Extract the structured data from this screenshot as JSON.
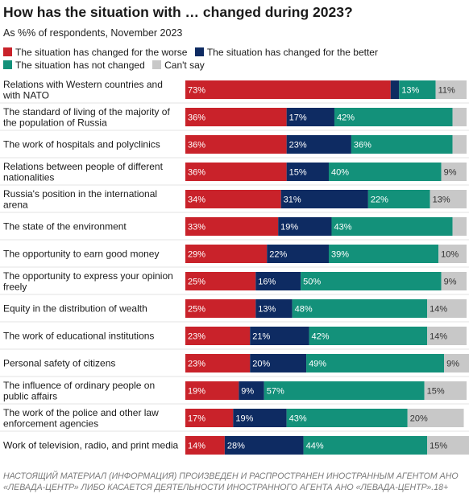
{
  "title": "How has the situation with … changed during 2023?",
  "subtitle": "As %% of respondents, November 2023",
  "legend": {
    "items": [
      {
        "label": "The situation has changed for the worse",
        "color": "#c9222a"
      },
      {
        "label": "The situation has changed for the better",
        "color": "#0e2b62"
      },
      {
        "label": "The situation has not changed",
        "color": "#13917a"
      },
      {
        "label": "Can't say",
        "color": "#c8c8c8"
      }
    ]
  },
  "footer": "НАСТОЯЩИЙ МАТЕРИАЛ (ИНФОРМАЦИЯ) ПРОИЗВЕДЕН И РАСПРОСТРАНЕН ИНОСТРАННЫМ АГЕНТОМ АНО «ЛЕВАДА-ЦЕНТР» ЛИБО КАСАЕТСЯ ДЕЯТЕЛЬНОСТИ ИНОСТРАННОГО АГЕНТА АНО «ЛЕВАДА-ЦЕНТР».18+",
  "chart_data": {
    "type": "bar",
    "orientation": "horizontal",
    "stacked": true,
    "xlim": [
      0,
      100
    ],
    "categories": [
      "Relations with Western countries and with NATO",
      "The standard of living of the majority of the population of Russia",
      "The work of hospitals and polyclinics",
      "Relations between people of different nationalities",
      "Russia's position in the international arena",
      "The state of the environment",
      "The opportunity to earn good money",
      "The opportunity to express your opinion freely",
      "Equity in the distribution of wealth",
      "The work of educational institutions",
      "Personal safety of citizens",
      "The influence of ordinary people on public affairs",
      "The work of the police and other law enforcement agencies",
      "Work of television, radio, and print media"
    ],
    "series": [
      {
        "name": "The situation has changed for the worse",
        "color": "#c9222a",
        "label_color": "#ffffff",
        "values": [
          73,
          36,
          36,
          36,
          34,
          33,
          29,
          25,
          25,
          23,
          23,
          19,
          17,
          14
        ],
        "labels": [
          "73%",
          "36%",
          "36%",
          "36%",
          "34%",
          "33%",
          "29%",
          "25%",
          "25%",
          "23%",
          "23%",
          "19%",
          "17%",
          "14%"
        ]
      },
      {
        "name": "The situation has changed for the better",
        "color": "#0e2b62",
        "label_color": "#ffffff",
        "values": [
          3,
          17,
          23,
          15,
          31,
          19,
          22,
          16,
          13,
          21,
          20,
          9,
          19,
          28
        ],
        "labels": [
          "",
          "17%",
          "23%",
          "15%",
          "31%",
          "19%",
          "22%",
          "16%",
          "13%",
          "21%",
          "20%",
          "9%",
          "19%",
          "28%"
        ]
      },
      {
        "name": "The situation has not changed",
        "color": "#13917a",
        "label_color": "#ffffff",
        "values": [
          13,
          42,
          36,
          40,
          22,
          43,
          39,
          50,
          48,
          42,
          49,
          57,
          43,
          44
        ],
        "labels": [
          "13%",
          "42%",
          "36%",
          "40%",
          "22%",
          "43%",
          "39%",
          "50%",
          "48%",
          "42%",
          "49%",
          "57%",
          "43%",
          "44%"
        ]
      },
      {
        "name": "Can't say",
        "color": "#c8c8c8",
        "label_color": "#333333",
        "values": [
          11,
          5,
          5,
          9,
          13,
          5,
          10,
          9,
          14,
          14,
          9,
          15,
          20,
          15
        ],
        "labels": [
          "11%",
          "",
          "",
          "9%",
          "13%",
          "",
          "10%",
          "9%",
          "14%",
          "14%",
          "9%",
          "15%",
          "20%",
          "15%"
        ]
      }
    ]
  }
}
